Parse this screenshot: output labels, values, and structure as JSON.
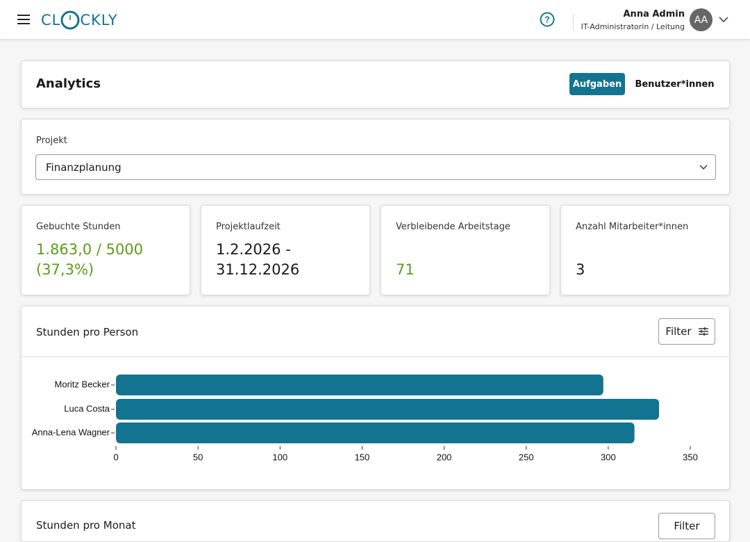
{
  "header": {
    "logo_parts": [
      "CL",
      "CKLY"
    ],
    "user_name": "Anna Admin",
    "user_role": "IT-Administratorin / Leitung",
    "avatar": "AA"
  },
  "analytics": {
    "title": "Analytics",
    "tabs": [
      "Aufgaben",
      "Benutzer*innen"
    ]
  },
  "project": {
    "label": "Projekt",
    "selected": "Finanzplanung"
  },
  "stats": [
    {
      "label": "Gebuchte Stunden",
      "value": "1.863,0 / 5000 (37,3%)"
    },
    {
      "label": "Projektlaufzeit",
      "value": "1.2.2026 - 31.12.2026"
    },
    {
      "label": "Verbleibende Arbeitstage",
      "value": "71"
    },
    {
      "label": "Anzahl Mitarbeiter*innen",
      "value": "3"
    }
  ],
  "filter_label": "Filter",
  "chart_data": {
    "type": "hbar",
    "title": "Stunden pro Person",
    "categories": [
      "Moritz Becker",
      "Luca Costa",
      "Anna-Lena Wagner"
    ],
    "values": [
      297,
      331,
      316
    ],
    "color": "#137491",
    "xlim": [
      0,
      350
    ],
    "xticks": [
      0,
      50,
      100,
      150,
      200,
      250,
      300,
      350
    ]
  },
  "next_card": {
    "title": "Stunden pro Monat"
  }
}
